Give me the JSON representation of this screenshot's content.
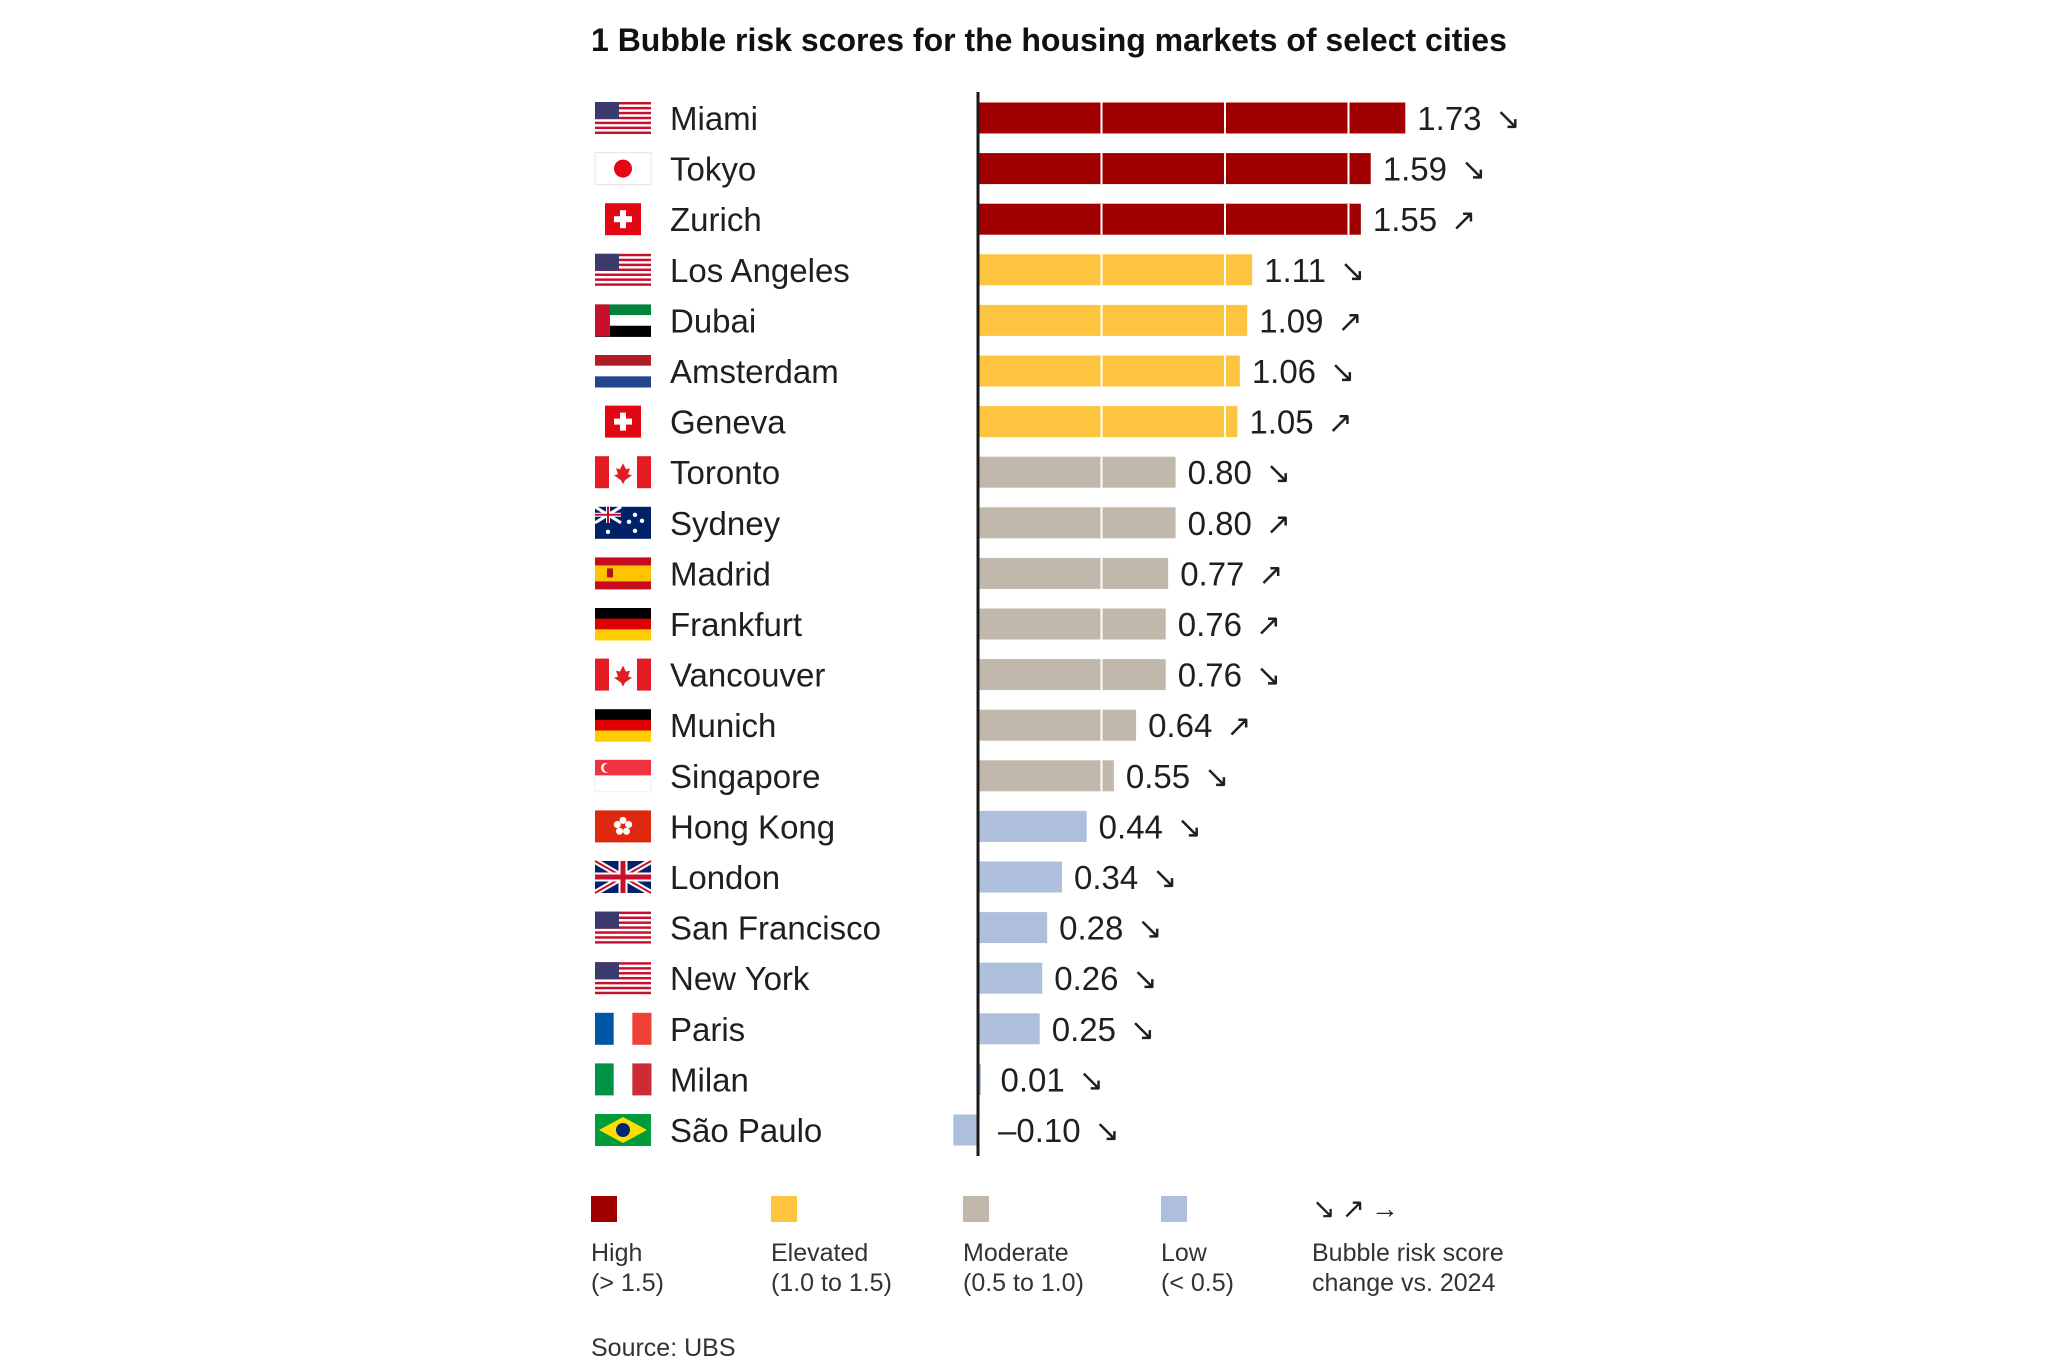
{
  "chart_data": {
    "type": "bar",
    "orientation": "horizontal",
    "title": "1 Bubble risk scores for the housing markets of select cities",
    "source": "Source: UBS",
    "xlim": [
      -0.1,
      1.73
    ],
    "categories": [
      "Miami",
      "Tokyo",
      "Zurich",
      "Los Angeles",
      "Dubai",
      "Amsterdam",
      "Geneva",
      "Toronto",
      "Sydney",
      "Madrid",
      "Frankfurt",
      "Vancouver",
      "Munich",
      "Singapore",
      "Hong Kong",
      "London",
      "San Francisco",
      "New York",
      "Paris",
      "Milan",
      "São Paulo"
    ],
    "values": [
      1.73,
      1.59,
      1.55,
      1.11,
      1.09,
      1.06,
      1.05,
      0.8,
      0.8,
      0.77,
      0.76,
      0.76,
      0.64,
      0.55,
      0.44,
      0.34,
      0.28,
      0.26,
      0.25,
      0.01,
      -0.1
    ],
    "value_labels": [
      "1.73",
      "1.59",
      "1.55",
      "1.11",
      "1.09",
      "1.06",
      "1.05",
      "0.80",
      "0.80",
      "0.77",
      "0.76",
      "0.76",
      "0.64",
      "0.55",
      "0.44",
      "0.34",
      "0.28",
      "0.26",
      "0.25",
      "0.01",
      "–0.10"
    ],
    "trend": [
      "down",
      "down",
      "up",
      "down",
      "up",
      "down",
      "up",
      "down",
      "up",
      "up",
      "up",
      "down",
      "up",
      "down",
      "down",
      "down",
      "down",
      "down",
      "down",
      "down",
      "down"
    ],
    "flags": [
      "us",
      "jp",
      "ch",
      "us",
      "ae",
      "nl",
      "ch",
      "ca",
      "au",
      "es",
      "de",
      "ca",
      "de",
      "sg",
      "hk",
      "gb",
      "us",
      "us",
      "fr",
      "it",
      "br"
    ],
    "category_colors": {
      "high": "#a00000",
      "elevated": "#fdc43f",
      "moderate": "#c0b9ab",
      "low": "#aebfdb"
    },
    "legend": [
      {
        "key": "high",
        "label": "High",
        "range": "(> 1.5)"
      },
      {
        "key": "elevated",
        "label": "Elevated",
        "range": "(1.0 to 1.5)"
      },
      {
        "key": "moderate",
        "label": "Moderate",
        "range": "(0.5 to 1.0)"
      },
      {
        "key": "low",
        "label": "Low",
        "range": "(< 0.5)"
      }
    ],
    "trend_legend": {
      "arrows": "↘↗→",
      "line1": "Bubble risk score",
      "line2": "change vs. 2024"
    }
  }
}
